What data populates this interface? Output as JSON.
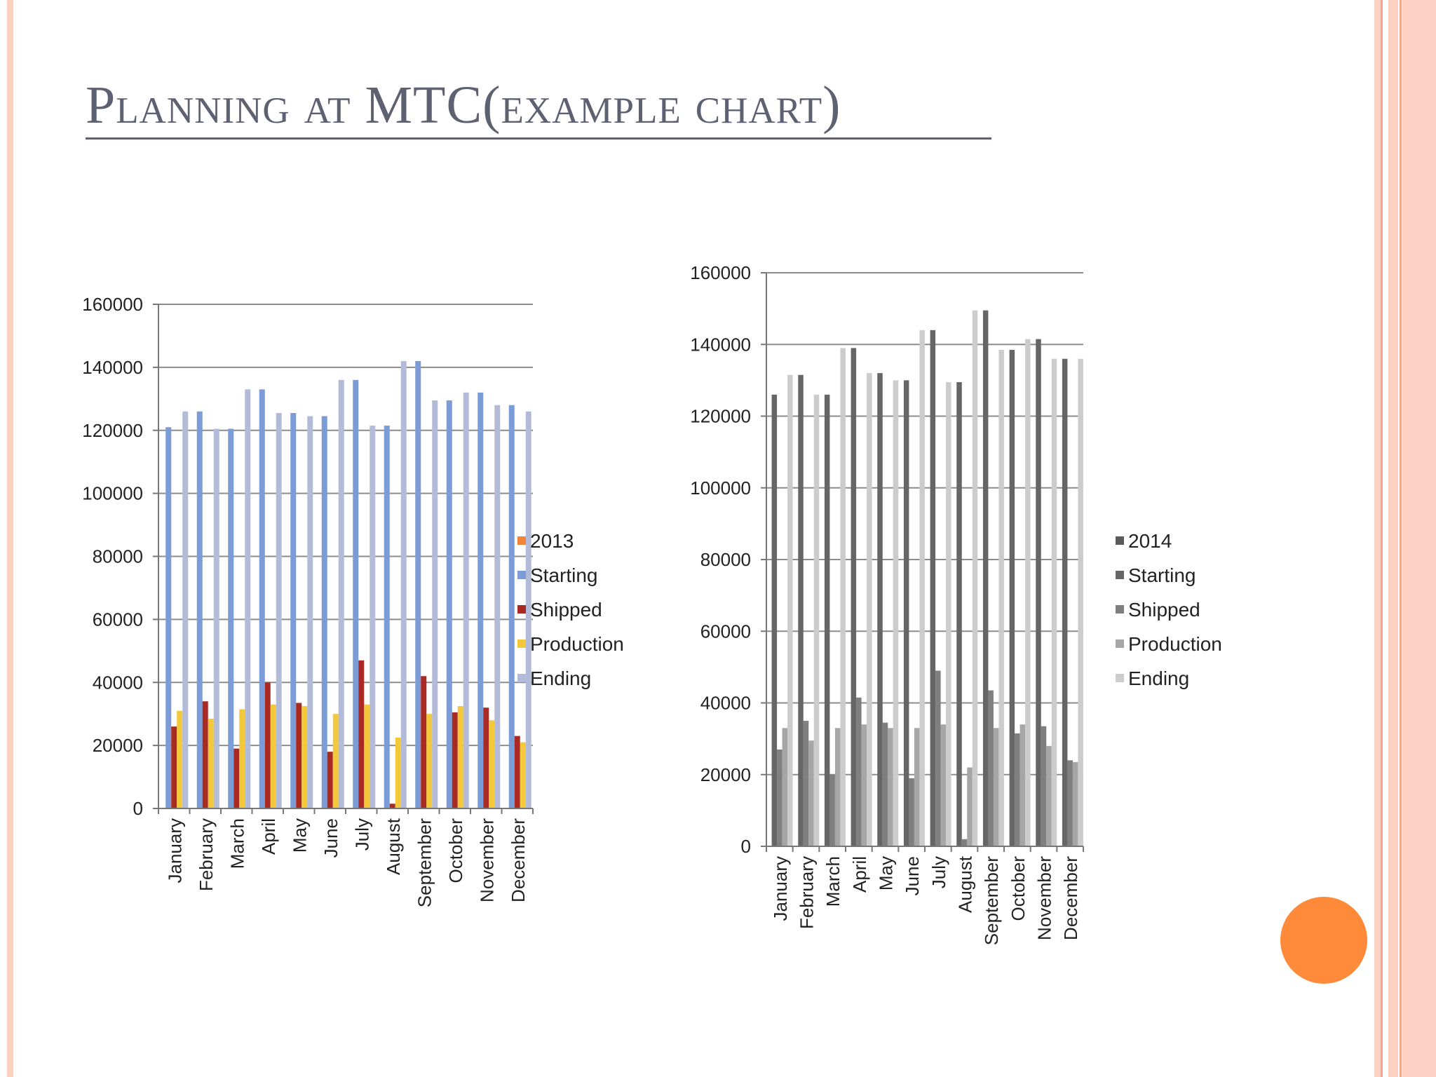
{
  "slide": {
    "title": "Planning at MTC(example chart)"
  },
  "colors": {
    "border_outer": "#fcd0c2",
    "border_inner": "#f8a48b",
    "title": "#5e6171",
    "accent_orange": "#fe8a3a",
    "chart1": [
      "#f28437",
      "#7b9cd6",
      "#a82a23",
      "#f3c83a",
      "#b3bbd9"
    ],
    "chart2": [
      "#5a5a5a",
      "#666666",
      "#7f7f7f",
      "#a6a6a6",
      "#cccccc"
    ]
  },
  "chart_data": [
    {
      "type": "bar",
      "categories": [
        "January",
        "February",
        "March",
        "April",
        "May",
        "June",
        "July",
        "August",
        "September",
        "October",
        "November",
        "December"
      ],
      "series": [
        {
          "name": "2013",
          "values": [
            0,
            0,
            0,
            0,
            0,
            0,
            0,
            0,
            0,
            0,
            0,
            0
          ]
        },
        {
          "name": "Starting",
          "values": [
            121000,
            126000,
            120500,
            133000,
            125500,
            124500,
            136000,
            121500,
            142000,
            129500,
            132000,
            128000
          ]
        },
        {
          "name": "Shipped",
          "values": [
            26000,
            34000,
            19000,
            40000,
            33500,
            18000,
            47000,
            1500,
            42000,
            30500,
            32000,
            23000
          ]
        },
        {
          "name": "Production",
          "values": [
            31000,
            28500,
            31500,
            33000,
            32500,
            30000,
            33000,
            22500,
            30000,
            32500,
            28000,
            21000
          ]
        },
        {
          "name": "Ending",
          "values": [
            126000,
            120500,
            133000,
            125500,
            124500,
            136000,
            121500,
            142000,
            129500,
            132000,
            128000,
            126000
          ]
        }
      ],
      "ylim": [
        0,
        160000
      ],
      "yticks": [
        "0",
        "20000",
        "40000",
        "60000",
        "80000",
        "100000",
        "120000",
        "140000",
        "160000"
      ],
      "grid": true,
      "legend": "right"
    },
    {
      "type": "bar",
      "categories": [
        "January",
        "February",
        "March",
        "April",
        "May",
        "June",
        "July",
        "August",
        "September",
        "October",
        "November",
        "December"
      ],
      "series": [
        {
          "name": "2014",
          "values": [
            0,
            0,
            0,
            0,
            0,
            0,
            0,
            0,
            0,
            0,
            0,
            0
          ]
        },
        {
          "name": "Starting",
          "values": [
            126000,
            131500,
            126000,
            139000,
            132000,
            130000,
            144000,
            129500,
            149500,
            138500,
            141500,
            136000
          ]
        },
        {
          "name": "Shipped",
          "values": [
            27000,
            35000,
            20000,
            41500,
            34500,
            19000,
            49000,
            2000,
            43500,
            31500,
            33500,
            24000
          ]
        },
        {
          "name": "Production",
          "values": [
            33000,
            29500,
            33000,
            34000,
            33000,
            33000,
            34000,
            22000,
            33000,
            34000,
            28000,
            23500
          ]
        },
        {
          "name": "Ending",
          "values": [
            131500,
            126000,
            139000,
            132000,
            130000,
            144000,
            129500,
            149500,
            138500,
            141500,
            136000,
            136000
          ]
        }
      ],
      "ylim": [
        0,
        160000
      ],
      "yticks": [
        "0",
        "20000",
        "40000",
        "60000",
        "80000",
        "100000",
        "120000",
        "140000",
        "160000"
      ],
      "grid": true,
      "legend": "right"
    }
  ]
}
